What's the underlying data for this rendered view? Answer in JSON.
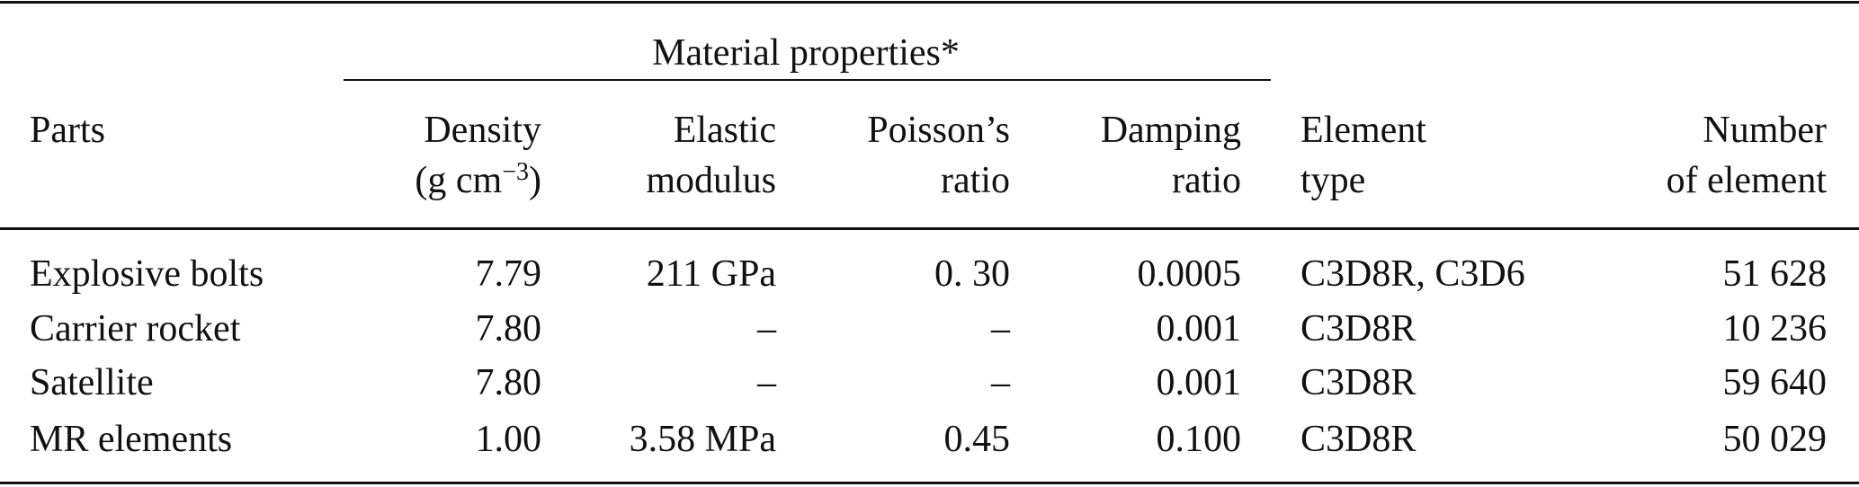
{
  "table": {
    "group_header": "Material properties*",
    "columns": [
      {
        "line1": "Parts",
        "line2": ""
      },
      {
        "line1": "Density",
        "line2": "(g cm",
        "line2_sup": "−3",
        "line2_end": ")"
      },
      {
        "line1": "Elastic",
        "line2": "modulus"
      },
      {
        "line1": "Poisson’s",
        "line2": "ratio"
      },
      {
        "line1": "Damping",
        "line2": "ratio"
      },
      {
        "line1": "Element",
        "line2": "type"
      },
      {
        "line1": "Number",
        "line2": "of element"
      }
    ],
    "rows": [
      [
        "Explosive bolts",
        "7.79",
        "211 GPa",
        "0. 30",
        "0.0005",
        "C3D8R, C3D6",
        "51 628"
      ],
      [
        "Carrier rocket",
        "7.80",
        "–",
        "–",
        "0.001",
        "C3D8R",
        "10 236"
      ],
      [
        "Satellite",
        "7.80",
        "–",
        "–",
        "0.001",
        "C3D8R",
        "59 640"
      ],
      [
        "MR elements",
        "1.00",
        "3.58 MPa",
        "0.45",
        "0.100",
        "C3D8R",
        "50 029"
      ]
    ]
  }
}
